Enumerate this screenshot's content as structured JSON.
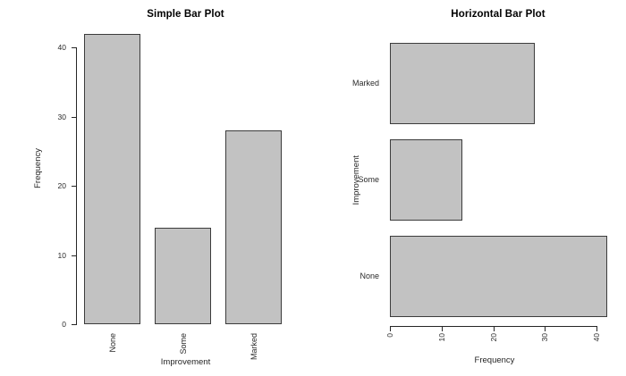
{
  "chart_data": [
    {
      "type": "bar",
      "orientation": "vertical",
      "title": "Simple Bar Plot",
      "xlabel": "Improvement",
      "ylabel": "Frequency",
      "categories": [
        "None",
        "Some",
        "Marked"
      ],
      "values": [
        42,
        14,
        28
      ],
      "value_axis_ticks": [
        0,
        10,
        20,
        30,
        40
      ],
      "ylim": [
        0,
        42
      ],
      "grid": false,
      "legend": "none",
      "bar_fill": "#c2c2c2",
      "bar_border": "#3c3c3c",
      "category_tick_labels_rotated_90": true
    },
    {
      "type": "bar",
      "orientation": "horizontal",
      "title": "Horizontal Bar Plot",
      "xlabel": "Frequency",
      "ylabel": "Improvement",
      "categories": [
        "None",
        "Some",
        "Marked"
      ],
      "values": [
        42,
        14,
        28
      ],
      "value_axis_ticks": [
        0,
        10,
        20,
        30,
        40
      ],
      "xlim": [
        0,
        42
      ],
      "grid": false,
      "legend": "none",
      "bar_fill": "#c2c2c2",
      "bar_border": "#3c3c3c",
      "value_tick_labels_rotated_90": true
    }
  ]
}
